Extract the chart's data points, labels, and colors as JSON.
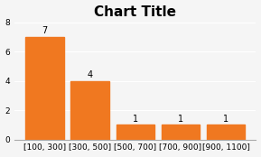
{
  "title": "Chart Title",
  "categories": [
    "[100, 300]",
    "[300, 500]",
    "[500, 700]",
    "[700, 900]",
    "[900, 1100]"
  ],
  "values": [
    7,
    4,
    1,
    1,
    1
  ],
  "bar_color": "#F07820",
  "ylim": [
    0,
    8
  ],
  "yticks": [
    0,
    2,
    4,
    6,
    8
  ],
  "title_fontsize": 11,
  "label_fontsize": 7,
  "tick_fontsize": 6.5,
  "background_color": "#f5f5f5"
}
